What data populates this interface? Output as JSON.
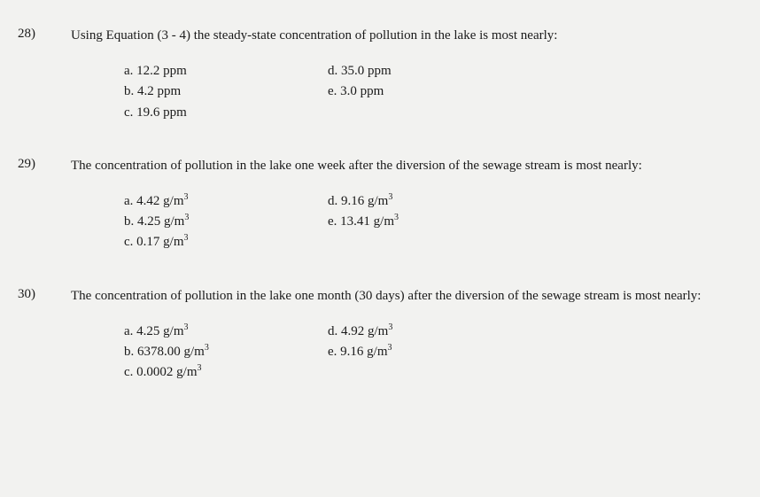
{
  "questions": [
    {
      "number": "28)",
      "text": "Using Equation (3 - 4) the steady-state concentration of pollution in the lake is most nearly:",
      "options": {
        "a": "a.  12.2 ppm",
        "b": "b.  4.2 ppm",
        "c": "c.  19.6 ppm",
        "d": "d.  35.0 ppm",
        "e": "e.  3.0 ppm"
      }
    },
    {
      "number": "29)",
      "text": "The concentration of pollution in the lake one week after the diversion of the sewage stream is most nearly:",
      "options": {
        "a": "a.  4.42 g/m",
        "b": "b.  4.25 g/m",
        "c": "c.  0.17 g/m",
        "d": "d.  9.16 g/m",
        "e": "e.  13.41 g/m"
      },
      "sup": "3"
    },
    {
      "number": "30)",
      "text": "The concentration of pollution in the lake one month (30 days) after the diversion of the sewage stream is most nearly:",
      "options": {
        "a": "a.  4.25 g/m",
        "b": "b.  6378.00 g/m",
        "c": "c.  0.0002 g/m",
        "d": "d.  4.92 g/m",
        "e": "e.  9.16 g/m"
      },
      "sup": "3"
    }
  ]
}
